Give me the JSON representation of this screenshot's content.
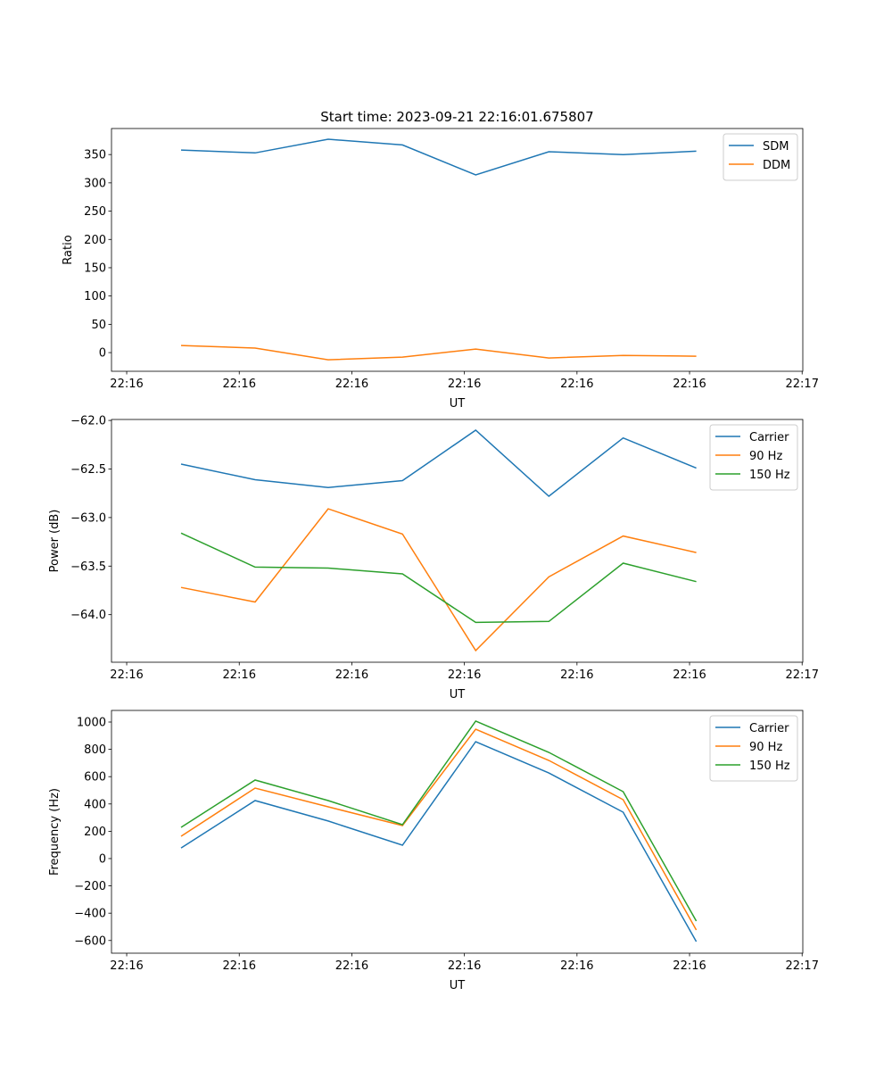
{
  "chart_data": [
    {
      "type": "line",
      "title": "Start time: 2023-09-21 22:16:01.675807",
      "xlabel": "UT",
      "ylabel": "Ratio",
      "x": [
        0.483,
        1.141,
        1.79,
        2.45,
        3.1,
        3.75,
        4.41,
        5.06
      ],
      "xlim": [
        -0.135,
        6.006
      ],
      "xticks": [
        0,
        1,
        2,
        3,
        4,
        5,
        6
      ],
      "xtick_labels": [
        "22:16",
        "22:16",
        "22:16",
        "22:16",
        "22:16",
        "22:16",
        "22:17"
      ],
      "ylim": [
        -33,
        396
      ],
      "yticks": [
        0,
        50,
        100,
        150,
        200,
        250,
        300,
        350
      ],
      "legend": "top-right",
      "series": [
        {
          "name": "SDM",
          "color": "#1f77b4",
          "values": [
            358,
            353,
            377,
            367,
            314,
            355,
            350,
            356
          ]
        },
        {
          "name": "DDM",
          "color": "#ff7f0e",
          "values": [
            12.6,
            8,
            -12.6,
            -8,
            6.3,
            -9.5,
            -5,
            -6.3
          ]
        }
      ]
    },
    {
      "type": "line",
      "title": "",
      "xlabel": "UT",
      "ylabel": "Power (dB)",
      "x": [
        0.483,
        1.141,
        1.79,
        2.45,
        3.1,
        3.75,
        4.41,
        5.06
      ],
      "xlim": [
        -0.135,
        6.006
      ],
      "xticks": [
        0,
        1,
        2,
        3,
        4,
        5,
        6
      ],
      "xtick_labels": [
        "22:16",
        "22:16",
        "22:16",
        "22:16",
        "22:16",
        "22:16",
        "22:17"
      ],
      "ylim": [
        -64.49,
        -61.99
      ],
      "yticks": [
        -64.0,
        -63.5,
        -63.0,
        -62.5,
        -62.0
      ],
      "ytick_labels": [
        "−64.0",
        "−63.5",
        "−63.0",
        "−62.5",
        "−62.0"
      ],
      "legend": "top-right",
      "series": [
        {
          "name": "Carrier",
          "color": "#1f77b4",
          "values": [
            -62.45,
            -62.61,
            -62.69,
            -62.62,
            -62.1,
            -62.78,
            -62.18,
            -62.49
          ]
        },
        {
          "name": "90 Hz",
          "color": "#ff7f0e",
          "values": [
            -63.72,
            -63.87,
            -62.91,
            -63.17,
            -64.37,
            -63.61,
            -63.19,
            -63.36
          ]
        },
        {
          "name": "150 Hz",
          "color": "#2ca02c",
          "values": [
            -63.16,
            -63.51,
            -63.52,
            -63.58,
            -64.08,
            -64.07,
            -63.47,
            -63.66
          ]
        }
      ]
    },
    {
      "type": "line",
      "title": "",
      "xlabel": "UT",
      "ylabel": "Frequency (Hz)",
      "x": [
        0.483,
        1.141,
        1.79,
        2.45,
        3.1,
        3.75,
        4.41,
        5.06
      ],
      "xlim": [
        -0.135,
        6.006
      ],
      "xticks": [
        0,
        1,
        2,
        3,
        4,
        5,
        6
      ],
      "xtick_labels": [
        "22:16",
        "22:16",
        "22:16",
        "22:16",
        "22:16",
        "22:16",
        "22:17"
      ],
      "ylim": [
        -693,
        1085
      ],
      "yticks": [
        -600,
        -400,
        -200,
        0,
        200,
        400,
        600,
        800,
        1000
      ],
      "ytick_labels": [
        "−600",
        "−400",
        "−200",
        "0",
        "200",
        "400",
        "600",
        "800",
        "1000"
      ],
      "legend": "top-right",
      "series": [
        {
          "name": "Carrier",
          "color": "#1f77b4",
          "values": [
            78,
            425,
            275,
            98,
            856,
            627,
            340,
            -608
          ]
        },
        {
          "name": "90 Hz",
          "color": "#ff7f0e",
          "values": [
            163,
            516,
            379,
            242,
            948,
            719,
            431,
            -523
          ]
        },
        {
          "name": "150 Hz",
          "color": "#2ca02c",
          "values": [
            229,
            575,
            425,
            248,
            1007,
            778,
            490,
            -458
          ]
        }
      ]
    }
  ]
}
